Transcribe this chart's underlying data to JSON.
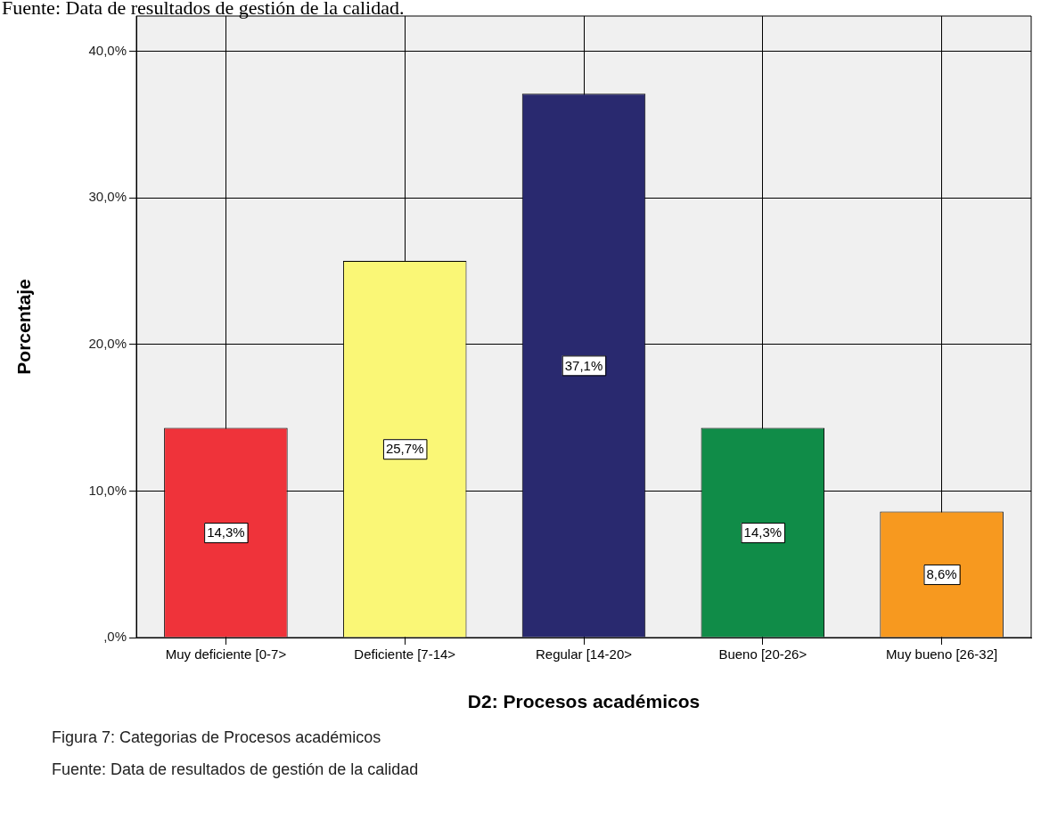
{
  "chart_data": {
    "type": "bar",
    "xlabel": "D2: Procesos académicos",
    "ylabel": "Porcentaje",
    "categories": [
      "Muy deficiente [0-7>",
      "Deficiente [7-14>",
      "Regular [14-20>",
      "Bueno [20-26>",
      "Muy bueno [26-32]"
    ],
    "values": [
      14.3,
      25.7,
      37.1,
      14.3,
      8.6
    ],
    "colors": [
      "#ef333a",
      "#faf776",
      "#29296f",
      "#108c48",
      "#f7991f"
    ],
    "value_labels": [
      "14,3%",
      "25,7%",
      "37,1%",
      "14,3%",
      "8,6%"
    ],
    "ylim": [
      0,
      42.4
    ],
    "yticks": [
      {
        "value": 0,
        "label": ",0%"
      },
      {
        "value": 10,
        "label": "10,0%"
      },
      {
        "value": 20,
        "label": "20,0%"
      },
      {
        "value": 30,
        "label": "30,0%"
      },
      {
        "value": 40,
        "label": "40,0%"
      }
    ],
    "grid": true,
    "legend": false,
    "annotations": [
      "Fuente: Data de resultados de gestión de la calidad.",
      "Figura 7: Categorias de Procesos académicos",
      "Fuente: Data de resultados de gestión de la calidad"
    ]
  }
}
